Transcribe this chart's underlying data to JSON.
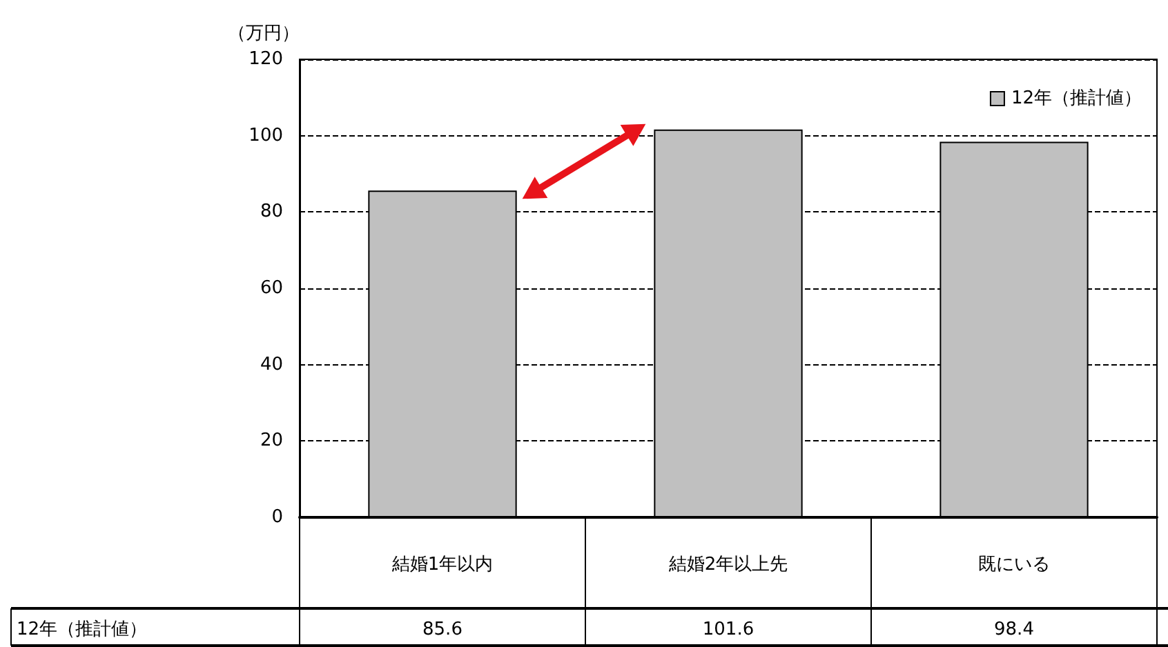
{
  "chart_data": {
    "type": "bar",
    "ylabel": "（万円）",
    "categories": [
      "結婚1年以内",
      "結婚2年以上先",
      "既にいる"
    ],
    "series": [
      {
        "name": "12年（推計値）",
        "color": "#c0c0c0",
        "values": [
          85.6,
          101.6,
          98.4
        ]
      }
    ],
    "ylim": [
      0,
      120
    ],
    "yticks": [
      0,
      20,
      40,
      60,
      80,
      100,
      120
    ],
    "grid": "y",
    "legend": "top right",
    "data_labels": true
  }
}
